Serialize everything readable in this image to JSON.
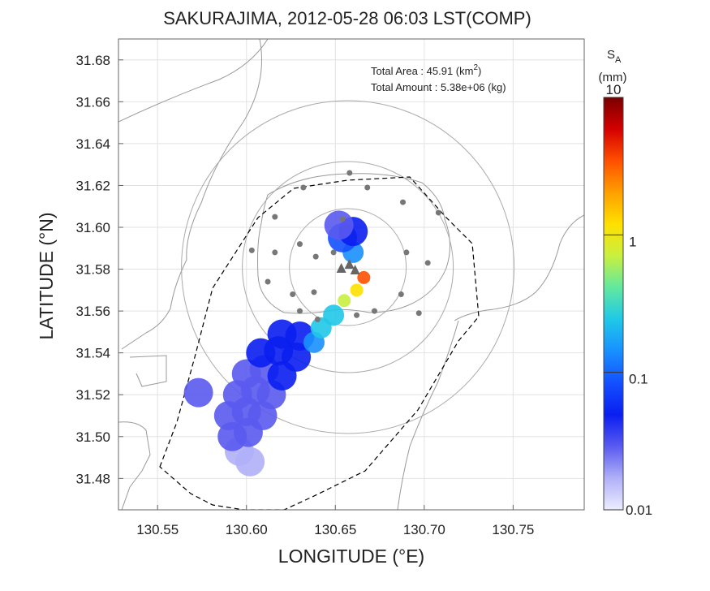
{
  "chart_data": {
    "type": "heatmap",
    "title": "SAKURAJIMA, 2012-05-28 06:03 LST(COMP)",
    "xlabel": "LONGITUDE (°E)",
    "ylabel": "LATITUDE (°N)",
    "xlim": [
      130.528,
      130.79
    ],
    "ylim": [
      31.465,
      31.69
    ],
    "x_ticks": [
      "130.55",
      "130.60",
      "130.65",
      "130.70",
      "130.75"
    ],
    "x_tick_values": [
      130.55,
      130.6,
      130.65,
      130.7,
      130.75
    ],
    "y_ticks": [
      "31.48",
      "31.50",
      "31.52",
      "31.54",
      "31.56",
      "31.58",
      "31.60",
      "31.62",
      "31.64",
      "31.66",
      "31.68"
    ],
    "y_tick_values": [
      31.48,
      31.5,
      31.52,
      31.54,
      31.56,
      31.58,
      31.6,
      31.62,
      31.64,
      31.66,
      31.68
    ],
    "grid": true,
    "annotations": {
      "area_label": "Total Area   : 45.91 (km",
      "area_sup": "2",
      "area_close": ")",
      "amount_label": "Total Amount : 5.38e+06 (kg)"
    },
    "colorbar": {
      "label_main": "S",
      "label_sub": "A",
      "unit": "(mm)",
      "scale": "log",
      "ticks": [
        "10",
        "1",
        "0.1",
        "0.01"
      ],
      "tick_values": [
        10,
        1,
        0.1,
        0.01
      ],
      "colors": [
        "#7a0000",
        "#d40000",
        "#ff5000",
        "#ffa000",
        "#ffe000",
        "#c8f040",
        "#60e8a0",
        "#20c8e8",
        "#1890ff",
        "#1450ff",
        "#0a1ef0",
        "#5a5af0",
        "#b0b0f8",
        "#ececff"
      ]
    },
    "volcano": {
      "lon": 130.657,
      "lat": 31.581
    },
    "stations": [
      {
        "lon": 130.658,
        "lat": 31.626
      },
      {
        "lon": 130.632,
        "lat": 31.619
      },
      {
        "lon": 130.668,
        "lat": 31.619
      },
      {
        "lon": 130.688,
        "lat": 31.612
      },
      {
        "lon": 130.708,
        "lat": 31.607
      },
      {
        "lon": 130.654,
        "lat": 31.604
      },
      {
        "lon": 130.616,
        "lat": 31.605
      },
      {
        "lon": 130.603,
        "lat": 31.589
      },
      {
        "lon": 130.63,
        "lat": 31.592
      },
      {
        "lon": 130.616,
        "lat": 31.588
      },
      {
        "lon": 130.639,
        "lat": 31.586
      },
      {
        "lon": 130.649,
        "lat": 31.588
      },
      {
        "lon": 130.69,
        "lat": 31.588
      },
      {
        "lon": 130.702,
        "lat": 31.583
      },
      {
        "lon": 130.612,
        "lat": 31.574
      },
      {
        "lon": 130.626,
        "lat": 31.568
      },
      {
        "lon": 130.638,
        "lat": 31.569
      },
      {
        "lon": 130.687,
        "lat": 31.568
      },
      {
        "lon": 130.63,
        "lat": 31.56
      },
      {
        "lon": 130.64,
        "lat": 31.556
      },
      {
        "lon": 130.662,
        "lat": 31.558
      },
      {
        "lon": 130.672,
        "lat": 31.56
      },
      {
        "lon": 130.697,
        "lat": 31.559
      }
    ],
    "ash_cells": [
      {
        "lon": 130.602,
        "lat": 31.488,
        "v": 0.02
      },
      {
        "lon": 130.596,
        "lat": 31.493,
        "v": 0.02
      },
      {
        "lon": 130.592,
        "lat": 31.5,
        "v": 0.025
      },
      {
        "lon": 130.601,
        "lat": 31.502,
        "v": 0.025
      },
      {
        "lon": 130.59,
        "lat": 31.51,
        "v": 0.025
      },
      {
        "lon": 130.6,
        "lat": 31.512,
        "v": 0.03
      },
      {
        "lon": 130.609,
        "lat": 31.51,
        "v": 0.03
      },
      {
        "lon": 130.595,
        "lat": 31.52,
        "v": 0.03
      },
      {
        "lon": 130.605,
        "lat": 31.522,
        "v": 0.03
      },
      {
        "lon": 130.614,
        "lat": 31.52,
        "v": 0.035
      },
      {
        "lon": 130.6,
        "lat": 31.53,
        "v": 0.035
      },
      {
        "lon": 130.61,
        "lat": 31.532,
        "v": 0.035
      },
      {
        "lon": 130.62,
        "lat": 31.529,
        "v": 0.04
      },
      {
        "lon": 130.608,
        "lat": 31.54,
        "v": 0.04
      },
      {
        "lon": 130.618,
        "lat": 31.541,
        "v": 0.045
      },
      {
        "lon": 130.628,
        "lat": 31.538,
        "v": 0.05
      },
      {
        "lon": 130.62,
        "lat": 31.549,
        "v": 0.05
      },
      {
        "lon": 130.63,
        "lat": 31.548,
        "v": 0.06
      },
      {
        "lon": 130.638,
        "lat": 31.545,
        "v": 0.12
      },
      {
        "lon": 130.642,
        "lat": 31.552,
        "v": 0.2
      },
      {
        "lon": 130.649,
        "lat": 31.558,
        "v": 0.3
      },
      {
        "lon": 130.655,
        "lat": 31.565,
        "v": 0.6
      },
      {
        "lon": 130.662,
        "lat": 31.57,
        "v": 1.3
      },
      {
        "lon": 130.666,
        "lat": 31.576,
        "v": 4.0
      },
      {
        "lon": 130.66,
        "lat": 31.588,
        "v": 0.15
      },
      {
        "lon": 130.654,
        "lat": 31.595,
        "v": 0.08
      },
      {
        "lon": 130.66,
        "lat": 31.598,
        "v": 0.05
      },
      {
        "lon": 130.652,
        "lat": 31.601,
        "v": 0.03
      },
      {
        "lon": 130.573,
        "lat": 31.521,
        "v": 0.03
      }
    ]
  }
}
